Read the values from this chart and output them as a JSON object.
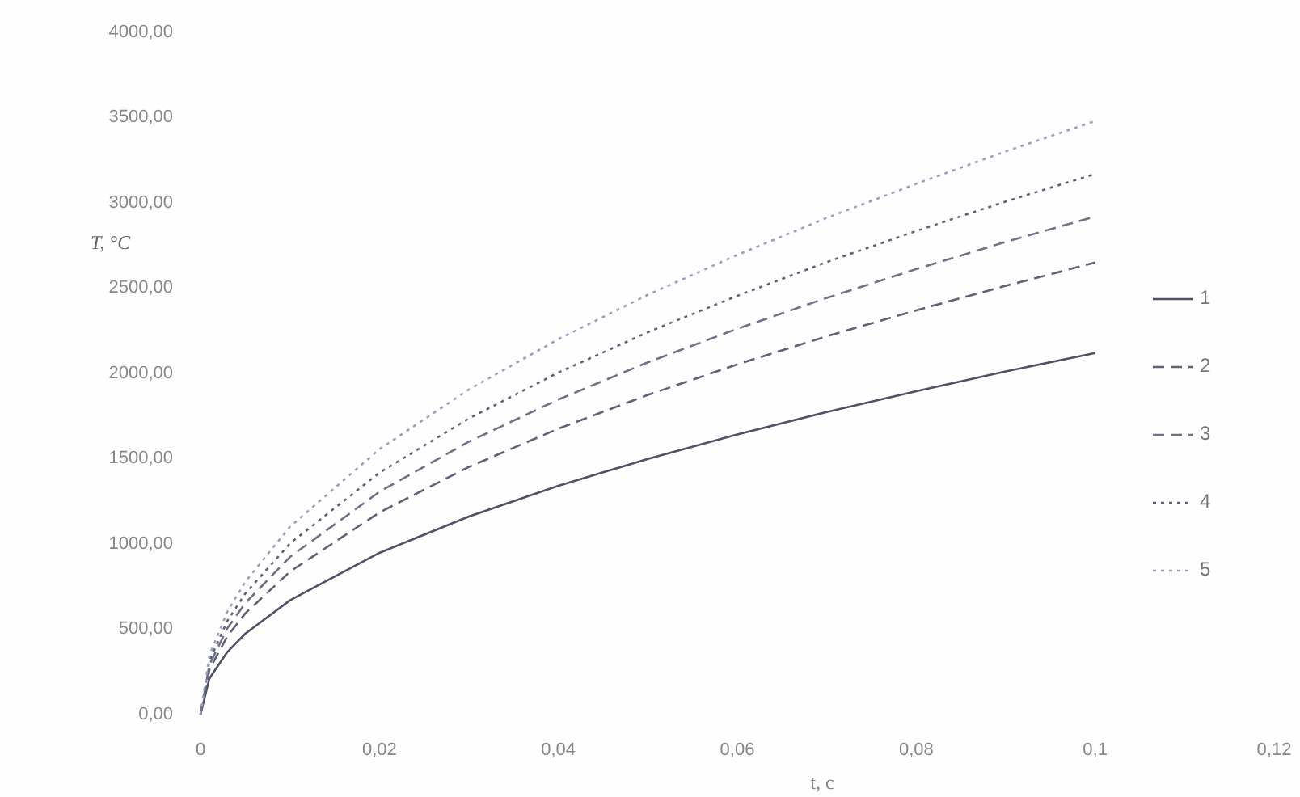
{
  "chart_data": {
    "type": "line",
    "xlabel": "t, c",
    "ylabel": "T, °C",
    "x": [
      0,
      0.001,
      0.003,
      0.005,
      0.01,
      0.02,
      0.03,
      0.04,
      0.05,
      0.06,
      0.07,
      0.08,
      0.09,
      0.1
    ],
    "series": [
      {
        "name": "1",
        "color": "#505068",
        "line_style": "solid",
        "values": [
          0,
          212,
          367,
          474,
          670,
          948,
          1161,
          1341,
          1499,
          1642,
          1774,
          1896,
          2012,
          2120
        ]
      },
      {
        "name": "2",
        "color": "#606078",
        "line_style": "dashed",
        "values": [
          0,
          265,
          459,
          593,
          838,
          1185,
          1452,
          1676,
          1874,
          2053,
          2218,
          2370,
          2514,
          2650
        ]
      },
      {
        "name": "3",
        "color": "#707088",
        "line_style": "dashed",
        "values": [
          0,
          292,
          506,
          653,
          924,
          1306,
          1600,
          1847,
          2065,
          2262,
          2443,
          2612,
          2771,
          2920
        ]
      },
      {
        "name": "4",
        "color": "#606078",
        "line_style": "dotted",
        "values": [
          0,
          317,
          549,
          709,
          1003,
          1418,
          1736,
          2005,
          2242,
          2455,
          2653,
          2835,
          3008,
          3170
        ]
      },
      {
        "name": "5",
        "color": "#9aa0c0",
        "line_style": "dotted",
        "values": [
          0,
          348,
          603,
          778,
          1101,
          1556,
          1906,
          2201,
          2461,
          2695,
          2912,
          3112,
          3302,
          3480
        ]
      }
    ],
    "xlim": [
      0,
      0.12
    ],
    "xticks": [
      0,
      {
        "value": 0.02,
        "label": "0,02"
      },
      {
        "value": 0.04,
        "label": "0,04"
      },
      {
        "value": 0.06,
        "label": "0,06"
      },
      {
        "value": 0.08,
        "label": "0,08"
      },
      {
        "value": 0.1,
        "label": "0,1"
      },
      {
        "value": 0.12,
        "label": "0,12"
      }
    ],
    "ylim": [
      0,
      4000
    ],
    "yticks": [
      {
        "value": 0,
        "label": "0,00"
      },
      {
        "value": 500,
        "label": "500,00"
      },
      {
        "value": 1000,
        "label": "1000,00"
      },
      {
        "value": 1500,
        "label": "1500,00"
      },
      {
        "value": 2000,
        "label": "2000,00"
      },
      {
        "value": 2500,
        "label": "2500,00"
      },
      {
        "value": 3000,
        "label": "3000,00"
      },
      {
        "value": 3500,
        "label": "3500,00"
      },
      {
        "value": 4000,
        "label": "4000,00"
      }
    ],
    "legend": "right",
    "grid": false
  }
}
